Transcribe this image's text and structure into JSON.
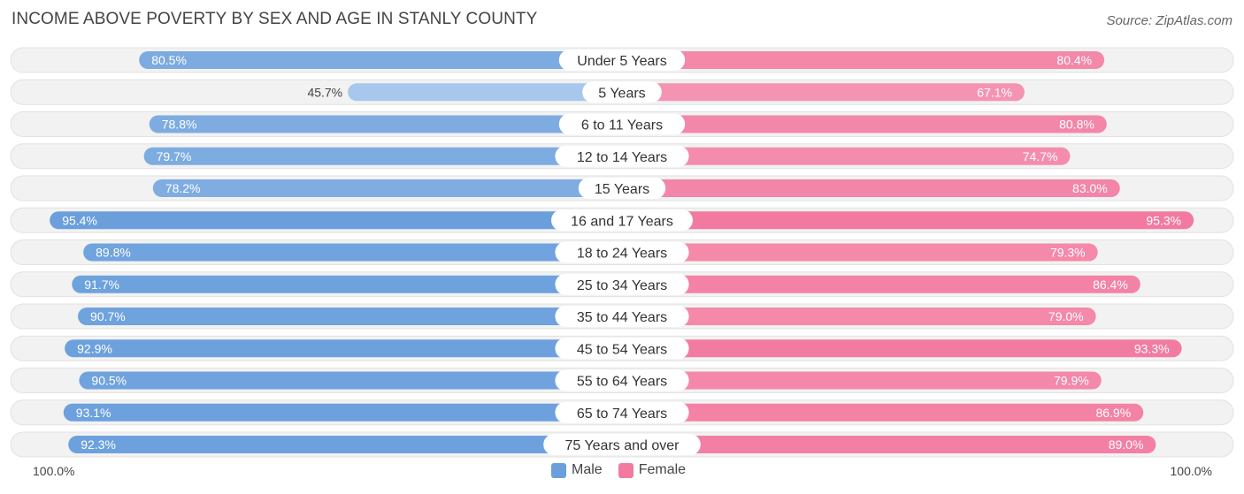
{
  "title": "INCOME ABOVE POVERTY BY SEX AND AGE IN STANLY COUNTY",
  "source": "Source: ZipAtlas.com",
  "axis": {
    "left_label": "100.0%",
    "right_label": "100.0%"
  },
  "legend": {
    "male": "Male",
    "female": "Female"
  },
  "colors": {
    "male_strong": "#6a9fdc",
    "male_light": "#a9c8ec",
    "female_strong": "#f27aa0",
    "female_light": "#f7a9c0",
    "track": "#f0f0f0"
  },
  "chart_data": {
    "type": "bar",
    "orientation": "horizontal-diverging",
    "categories": [
      "Under 5 Years",
      "5 Years",
      "6 to 11 Years",
      "12 to 14 Years",
      "15 Years",
      "16 and 17 Years",
      "18 to 24 Years",
      "25 to 34 Years",
      "35 to 44 Years",
      "45 to 54 Years",
      "55 to 64 Years",
      "65 to 74 Years",
      "75 Years and over"
    ],
    "series": [
      {
        "name": "Male",
        "values": [
          80.5,
          45.7,
          78.8,
          79.7,
          78.2,
          95.4,
          89.8,
          91.7,
          90.7,
          92.9,
          90.5,
          93.1,
          92.3
        ]
      },
      {
        "name": "Female",
        "values": [
          80.4,
          67.1,
          80.8,
          74.7,
          83.0,
          95.3,
          79.3,
          86.4,
          79.0,
          93.3,
          79.9,
          86.9,
          89.0
        ]
      }
    ],
    "value_labels": {
      "Male": [
        "80.5%",
        "45.7%",
        "78.8%",
        "79.7%",
        "78.2%",
        "95.4%",
        "89.8%",
        "91.7%",
        "90.7%",
        "92.9%",
        "90.5%",
        "93.1%",
        "92.3%"
      ],
      "Female": [
        "80.4%",
        "67.1%",
        "80.8%",
        "74.7%",
        "83.0%",
        "95.3%",
        "79.3%",
        "86.4%",
        "79.0%",
        "93.3%",
        "79.9%",
        "86.9%",
        "89.0%"
      ]
    },
    "xlim": [
      0,
      100
    ],
    "legend_position": "bottom-center"
  }
}
